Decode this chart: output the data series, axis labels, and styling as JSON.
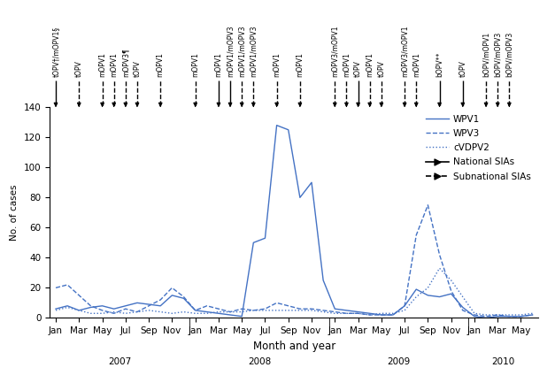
{
  "months_total": 42,
  "wpv1": [
    6,
    8,
    5,
    7,
    8,
    6,
    8,
    10,
    9,
    8,
    15,
    13,
    5,
    4,
    3,
    2,
    1,
    50,
    53,
    128,
    125,
    80,
    90,
    25,
    6,
    5,
    4,
    3,
    2,
    2,
    8,
    19,
    15,
    14,
    16,
    7,
    1,
    0,
    1,
    1,
    1,
    2
  ],
  "wpv3": [
    20,
    22,
    15,
    8,
    5,
    3,
    6,
    4,
    8,
    12,
    20,
    14,
    5,
    8,
    6,
    4,
    6,
    5,
    6,
    10,
    8,
    6,
    6,
    5,
    4,
    3,
    3,
    2,
    2,
    2,
    8,
    55,
    75,
    42,
    18,
    5,
    2,
    1,
    2,
    1,
    1,
    2
  ],
  "cvdpv2": [
    5,
    7,
    5,
    3,
    3,
    4,
    3,
    4,
    5,
    4,
    3,
    4,
    3,
    3,
    4,
    4,
    4,
    5,
    5,
    5,
    5,
    5,
    5,
    4,
    3,
    3,
    3,
    2,
    3,
    3,
    5,
    14,
    20,
    33,
    25,
    14,
    3,
    2,
    2,
    2,
    2,
    3
  ],
  "sia_arrows": [
    {
      "month_idx": 0,
      "national": true,
      "label": "tOPV†/mOPV1§"
    },
    {
      "month_idx": 2,
      "national": false,
      "label": "tOPV"
    },
    {
      "month_idx": 4,
      "national": false,
      "label": "mOPV1"
    },
    {
      "month_idx": 5,
      "national": false,
      "label": "mOPV1"
    },
    {
      "month_idx": 6,
      "national": false,
      "label": "mOPV3¶"
    },
    {
      "month_idx": 7,
      "national": false,
      "label": "tOPV"
    },
    {
      "month_idx": 9,
      "national": false,
      "label": "mOPV1"
    },
    {
      "month_idx": 12,
      "national": false,
      "label": "mOPV1"
    },
    {
      "month_idx": 14,
      "national": true,
      "label": "mOPV1"
    },
    {
      "month_idx": 15,
      "national": true,
      "label": "mOPV1/mOPV3"
    },
    {
      "month_idx": 16,
      "national": false,
      "label": "mOPV1/mOPV3"
    },
    {
      "month_idx": 17,
      "national": false,
      "label": "mOPV1/mOPV3"
    },
    {
      "month_idx": 19,
      "national": false,
      "label": "mOPV1"
    },
    {
      "month_idx": 21,
      "national": false,
      "label": "mOPV1"
    },
    {
      "month_idx": 24,
      "national": false,
      "label": "mOPV3/mOPV1"
    },
    {
      "month_idx": 25,
      "national": false,
      "label": "mOPV1"
    },
    {
      "month_idx": 26,
      "national": true,
      "label": "tOPV"
    },
    {
      "month_idx": 27,
      "national": false,
      "label": "mOPV1"
    },
    {
      "month_idx": 28,
      "national": false,
      "label": "tOPV"
    },
    {
      "month_idx": 30,
      "national": false,
      "label": "mOPV3/mOPV1"
    },
    {
      "month_idx": 31,
      "national": false,
      "label": "mOPV1"
    },
    {
      "month_idx": 33,
      "national": true,
      "label": "bOPV**"
    },
    {
      "month_idx": 35,
      "national": true,
      "label": "tOPV"
    },
    {
      "month_idx": 37,
      "national": false,
      "label": "bOPV/mOPV1"
    },
    {
      "month_idx": 38,
      "national": false,
      "label": "bOPV/mOPV3"
    },
    {
      "month_idx": 39,
      "national": false,
      "label": "bOPV/mOPV3"
    }
  ],
  "line_color": "#4472C4",
  "bg_color": "#ffffff",
  "ylim": [
    0,
    140
  ],
  "yticks": [
    0,
    20,
    40,
    60,
    80,
    100,
    120,
    140
  ],
  "ylabel": "No. of cases",
  "xlabel": "Month and year",
  "year_labels": [
    "2007",
    "2008",
    "2009",
    "2010"
  ],
  "font_size": 7.5
}
